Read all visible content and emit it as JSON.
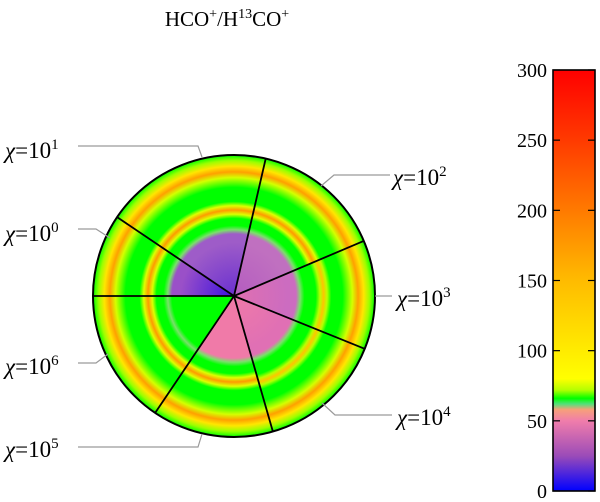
{
  "chart_data": {
    "type": "heatmap",
    "title": "HCO⁺/H¹³CO⁺",
    "colorbar": {
      "range": [
        0,
        300
      ],
      "ticks": [
        0,
        50,
        100,
        150,
        200,
        250,
        300
      ],
      "stops": [
        {
          "value": 0,
          "color": "#0000ff"
        },
        {
          "value": 25,
          "color": "#9b4bb8"
        },
        {
          "value": 50,
          "color": "#f07dab"
        },
        {
          "value": 58,
          "color": "#f7a07a"
        },
        {
          "value": 62,
          "color": "#52e07a"
        },
        {
          "value": 66,
          "color": "#00ff00"
        },
        {
          "value": 72,
          "color": "#b4ff00"
        },
        {
          "value": 80,
          "color": "#ffff00"
        },
        {
          "value": 150,
          "color": "#ffbb00"
        },
        {
          "value": 200,
          "color": "#ff7a00"
        },
        {
          "value": 250,
          "color": "#ff3a00"
        },
        {
          "value": 300,
          "color": "#ff0000"
        }
      ]
    },
    "sectors": [
      {
        "chi_exp": "0",
        "start_deg": 180,
        "end_deg": 214,
        "core": {
          "inner": "#3a10e0",
          "outer": "#9a50c8"
        },
        "bright_ring": true
      },
      {
        "chi_exp": "1",
        "start_deg": 214,
        "end_deg": 283,
        "core": {
          "inner": "#6a30d0",
          "outer": "#9e5cc8"
        },
        "bright_ring": true
      },
      {
        "chi_exp": "2",
        "start_deg": 283,
        "end_deg": 337,
        "core": {
          "inner": "#b45cc0",
          "outer": "#c070c0"
        },
        "bright_ring": true
      },
      {
        "chi_exp": "3",
        "start_deg": 337,
        "end_deg": 22,
        "core": {
          "inner": "#e070b0",
          "outer": "#cc6cc0"
        },
        "bright_ring": false
      },
      {
        "chi_exp": "4",
        "start_deg": 22,
        "end_deg": 74,
        "core": {
          "inner": "#f07aa8",
          "outer": "#e070b4"
        },
        "bright_ring": false
      },
      {
        "chi_exp": "5",
        "start_deg": 74,
        "end_deg": 124,
        "core": {
          "inner": "#f07aa8",
          "outer": "#f07aa8"
        },
        "bright_ring": true
      },
      {
        "chi_exp": "6",
        "start_deg": 124,
        "end_deg": 180,
        "core": {
          "inner": "#00ff00",
          "outer": "#00ff00"
        },
        "bright_ring": true
      }
    ],
    "labels": [
      {
        "chi_exp": "1"
      },
      {
        "chi_exp": "0"
      },
      {
        "chi_exp": "2"
      },
      {
        "chi_exp": "3"
      },
      {
        "chi_exp": "4"
      },
      {
        "chi_exp": "5"
      },
      {
        "chi_exp": "6"
      }
    ]
  }
}
